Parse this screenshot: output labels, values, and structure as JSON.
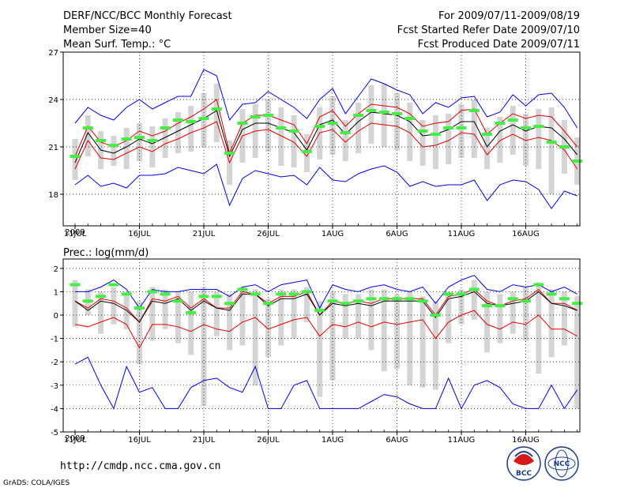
{
  "header": {
    "title": "DERF/NCC/BCC Monthly Forecast",
    "member_size": "Member Size=40",
    "variable": "Mean Surf. Temp.: °C",
    "period": "For 2009/07/11-2009/08/19",
    "started": "Fcst Started Refer Date 2009/07/10",
    "produced": "Fcst Produced Date 2009/07/11"
  },
  "footer": {
    "url": "http://cmdp.ncc.cma.gov.cn",
    "credit": "GrADS: COLA/IGES",
    "logo_bcc": "BCC",
    "logo_ncc": "NCC"
  },
  "colors": {
    "ensemble_range": "#d4d4d4",
    "spread_line": "#e00000",
    "envelope_line": "#0000e0",
    "mean_line": "#000000",
    "median_mark": "#44ee44"
  },
  "chart_data": [
    {
      "type": "line",
      "panel": "top",
      "title": "Mean Surf. Temp.: °C",
      "x_tick_labels": [
        "11JUL",
        "16JUL",
        "21JUL",
        "26JUL",
        "1AUG",
        "6AUG",
        "11AUG",
        "16AUG"
      ],
      "x_year_label": "2009",
      "y_ticks": [
        18,
        21,
        24,
        27
      ],
      "ylim": [
        16,
        27
      ],
      "days": 40,
      "series": [
        {
          "name": "max",
          "values": [
            22.5,
            23.5,
            23.0,
            22.7,
            23.5,
            24.0,
            23.4,
            23.8,
            24.2,
            24.2,
            25.9,
            25.5,
            22.7,
            23.7,
            23.8,
            24.5,
            24.0,
            23.5,
            22.8,
            24.0,
            24.7,
            23.1,
            24.2,
            25.3,
            25.0,
            24.6,
            24.3,
            23.1,
            23.8,
            23.5,
            24.1,
            24.2,
            22.9,
            23.2,
            24.3,
            23.6,
            24.3,
            24.4,
            23.5,
            22.2
          ]
        },
        {
          "name": "upper",
          "values": [
            20.4,
            22.3,
            21.3,
            21.0,
            21.4,
            22.0,
            21.7,
            22.0,
            22.5,
            22.9,
            23.4,
            24.0,
            20.6,
            22.5,
            23.0,
            23.0,
            22.7,
            22.4,
            21.2,
            22.9,
            23.3,
            22.3,
            23.1,
            23.7,
            23.6,
            23.5,
            23.1,
            22.3,
            22.5,
            22.6,
            23.3,
            23.4,
            21.8,
            22.5,
            23.1,
            22.8,
            23.0,
            22.9,
            22.0,
            21.0
          ]
        },
        {
          "name": "mean",
          "values": [
            20.0,
            21.9,
            20.8,
            20.6,
            21.0,
            21.5,
            21.2,
            21.6,
            22.0,
            22.4,
            22.8,
            23.3,
            20.4,
            22.1,
            22.5,
            22.5,
            22.2,
            21.9,
            20.8,
            22.4,
            22.7,
            21.8,
            22.6,
            23.2,
            23.1,
            23.0,
            22.6,
            21.7,
            21.8,
            22.1,
            22.6,
            22.6,
            21.0,
            22.0,
            22.4,
            22.0,
            22.3,
            22.2,
            21.5,
            20.5
          ]
        },
        {
          "name": "lower",
          "values": [
            19.6,
            21.4,
            20.3,
            20.2,
            20.6,
            21.0,
            20.7,
            21.2,
            21.5,
            21.9,
            22.2,
            22.6,
            20.0,
            21.7,
            22.0,
            22.1,
            21.7,
            21.3,
            20.4,
            21.9,
            22.1,
            21.3,
            22.0,
            22.5,
            22.4,
            22.3,
            21.9,
            21.0,
            21.1,
            21.4,
            21.9,
            21.8,
            20.5,
            21.4,
            21.8,
            21.4,
            21.6,
            21.4,
            20.8,
            19.6
          ]
        },
        {
          "name": "min",
          "values": [
            18.6,
            19.2,
            18.5,
            18.7,
            18.4,
            19.2,
            19.2,
            19.3,
            19.7,
            19.5,
            19.3,
            19.9,
            17.3,
            19.0,
            19.5,
            19.3,
            19.1,
            19.2,
            18.6,
            19.7,
            18.9,
            18.8,
            19.3,
            19.6,
            19.8,
            19.4,
            18.5,
            18.8,
            18.5,
            18.6,
            18.6,
            18.9,
            17.6,
            18.6,
            18.9,
            18.8,
            18.3,
            17.1,
            18.2,
            17.9
          ]
        },
        {
          "name": "range_max",
          "values": [
            21.5,
            23.0,
            22.0,
            21.7,
            22.2,
            22.5,
            22.3,
            22.8,
            23.2,
            23.6,
            24.4,
            25.0,
            21.4,
            23.4,
            23.7,
            24.0,
            23.5,
            23.0,
            21.8,
            23.5,
            24.2,
            22.7,
            23.8,
            24.9,
            25.0,
            24.4,
            23.8,
            22.7,
            23.0,
            23.1,
            23.7,
            24.0,
            22.2,
            22.9,
            23.6,
            23.1,
            23.4,
            23.5,
            22.7,
            21.6
          ]
        },
        {
          "name": "range_min",
          "values": [
            18.9,
            20.4,
            19.6,
            19.8,
            19.6,
            20.1,
            19.7,
            20.3,
            20.6,
            20.7,
            21.0,
            21.3,
            18.6,
            20.0,
            20.3,
            20.7,
            19.8,
            19.7,
            19.4,
            20.2,
            20.5,
            20.1,
            20.6,
            21.2,
            21.0,
            20.8,
            20.1,
            19.8,
            19.6,
            19.9,
            20.3,
            20.3,
            19.6,
            20.0,
            20.5,
            19.8,
            19.6,
            18.0,
            19.3,
            18.6
          ]
        },
        {
          "name": "median",
          "values": [
            20.4,
            22.2,
            21.4,
            21.1,
            21.5,
            21.6,
            21.4,
            22.2,
            22.7,
            22.6,
            22.8,
            23.4,
            20.6,
            22.5,
            22.9,
            23.0,
            22.2,
            22.0,
            20.7,
            22.3,
            22.5,
            21.9,
            23.0,
            23.3,
            23.2,
            23.1,
            22.8,
            22.0,
            21.8,
            22.2,
            22.2,
            23.3,
            21.8,
            22.5,
            22.7,
            22.2,
            22.3,
            21.3,
            21.0,
            20.1
          ]
        }
      ]
    },
    {
      "type": "line",
      "panel": "bottom",
      "title": "Prec.: log(mm/d)",
      "x_tick_labels": [
        "11JUL",
        "16JUL",
        "21JUL",
        "26JUL",
        "1AUG",
        "6AUG",
        "11AUG",
        "16AUG"
      ],
      "x_year_label": "2009",
      "y_ticks": [
        -5,
        -4,
        -3,
        -2,
        -1,
        0,
        1,
        2
      ],
      "ylim": [
        -5,
        2.4
      ],
      "days": 40,
      "series": [
        {
          "name": "max",
          "values": [
            1.0,
            1.0,
            1.2,
            1.5,
            1.1,
            0.3,
            1.1,
            1.0,
            1.0,
            1.1,
            1.1,
            1.1,
            0.8,
            1.2,
            1.3,
            1.0,
            1.3,
            1.4,
            1.5,
            0.3,
            1.3,
            1.1,
            1.0,
            1.2,
            1.3,
            1.1,
            1.0,
            1.2,
            0.5,
            1.2,
            1.5,
            1.7,
            1.1,
            1.0,
            1.3,
            1.2,
            1.3,
            1.0,
            1.2,
            0.9
          ]
        },
        {
          "name": "upper",
          "values": [
            0.6,
            0.3,
            0.7,
            0.6,
            0.3,
            -0.3,
            0.7,
            0.6,
            0.8,
            0.3,
            0.7,
            0.3,
            0.3,
            1.0,
            0.9,
            0.5,
            0.8,
            0.8,
            1.0,
            0.0,
            0.6,
            0.5,
            0.6,
            0.5,
            0.7,
            0.7,
            0.7,
            0.7,
            0.0,
            0.8,
            0.9,
            1.1,
            0.6,
            0.4,
            0.6,
            0.7,
            1.1,
            0.5,
            0.5,
            0.2
          ]
        },
        {
          "name": "mean",
          "values": [
            0.6,
            0.2,
            0.6,
            0.5,
            0.2,
            -0.3,
            0.6,
            0.5,
            0.7,
            0.2,
            0.6,
            0.3,
            0.2,
            0.9,
            0.9,
            0.4,
            0.7,
            0.7,
            0.9,
            0.0,
            0.5,
            0.4,
            0.5,
            0.4,
            0.6,
            0.6,
            0.6,
            0.6,
            -0.1,
            0.7,
            0.8,
            1.0,
            0.5,
            0.4,
            0.5,
            0.6,
            1.0,
            0.5,
            0.4,
            0.2
          ]
        },
        {
          "name": "lower",
          "values": [
            -0.4,
            -0.5,
            -0.3,
            -0.1,
            -0.4,
            -1.4,
            -0.4,
            -0.4,
            -0.5,
            -0.7,
            -0.4,
            -0.6,
            -0.7,
            -0.3,
            -0.1,
            -0.6,
            -0.4,
            -0.2,
            -0.1,
            -0.9,
            -0.4,
            -0.5,
            -0.3,
            -0.5,
            -0.3,
            -0.4,
            -0.3,
            -0.2,
            -1.0,
            -0.3,
            0.0,
            0.2,
            -0.4,
            -0.6,
            -0.3,
            -0.4,
            0.0,
            -0.6,
            -0.6,
            -0.9
          ]
        },
        {
          "name": "min",
          "values": [
            -2.1,
            -1.8,
            -3.0,
            -4.0,
            -2.2,
            -3.3,
            -3.1,
            -4.0,
            -4.0,
            -3.1,
            -2.8,
            -2.7,
            -3.1,
            -3.3,
            -2.2,
            -4.0,
            -4.0,
            -3.0,
            -2.8,
            -4.0,
            -4.0,
            -4.0,
            -4.0,
            -3.7,
            -3.4,
            -3.5,
            -3.8,
            -4.0,
            -4.0,
            -2.7,
            -4.0,
            -3.0,
            -2.8,
            -3.1,
            -3.8,
            -4.0,
            -4.0,
            -3.0,
            -4.0,
            -3.2
          ]
        },
        {
          "name": "range_max",
          "values": [
            1.5,
            1.1,
            1.0,
            1.2,
            0.9,
            0.6,
            1.2,
            1.1,
            1.0,
            1.0,
            1.2,
            1.0,
            0.9,
            1.2,
            1.1,
            0.7,
            1.1,
            1.1,
            1.2,
            0.6,
            1.0,
            0.9,
            0.9,
            1.1,
            1.1,
            0.9,
            1.0,
            0.8,
            0.6,
            1.0,
            1.1,
            1.5,
            1.0,
            0.9,
            1.0,
            1.2,
            1.4,
            1.1,
            1.0,
            0.8
          ]
        },
        {
          "name": "range_min",
          "values": [
            -0.5,
            0.0,
            -0.8,
            -0.4,
            -0.6,
            -2.1,
            -1.1,
            -0.6,
            -1.2,
            -1.7,
            -3.9,
            -0.9,
            -1.5,
            -1.3,
            -3.0,
            -1.8,
            -1.3,
            -1.0,
            -0.3,
            -3.5,
            -2.8,
            -1.0,
            -1.0,
            -1.5,
            -2.4,
            -2.3,
            -3.0,
            -3.1,
            -3.2,
            -1.2,
            -0.4,
            -0.2,
            -1.6,
            -1.2,
            -0.8,
            -1.1,
            -2.5,
            -1.8,
            -1.3,
            -4.0
          ]
        },
        {
          "name": "median",
          "values": [
            1.3,
            0.6,
            0.8,
            1.3,
            0.9,
            0.3,
            1.0,
            0.9,
            0.6,
            0.1,
            0.8,
            0.8,
            0.5,
            1.1,
            0.9,
            0.5,
            0.9,
            0.9,
            1.0,
            0.2,
            0.6,
            0.5,
            0.6,
            0.7,
            0.7,
            0.7,
            0.7,
            0.6,
            0.0,
            0.9,
            0.9,
            1.1,
            0.4,
            0.4,
            0.7,
            0.6,
            1.3,
            0.9,
            0.7,
            0.5
          ]
        }
      ]
    }
  ]
}
